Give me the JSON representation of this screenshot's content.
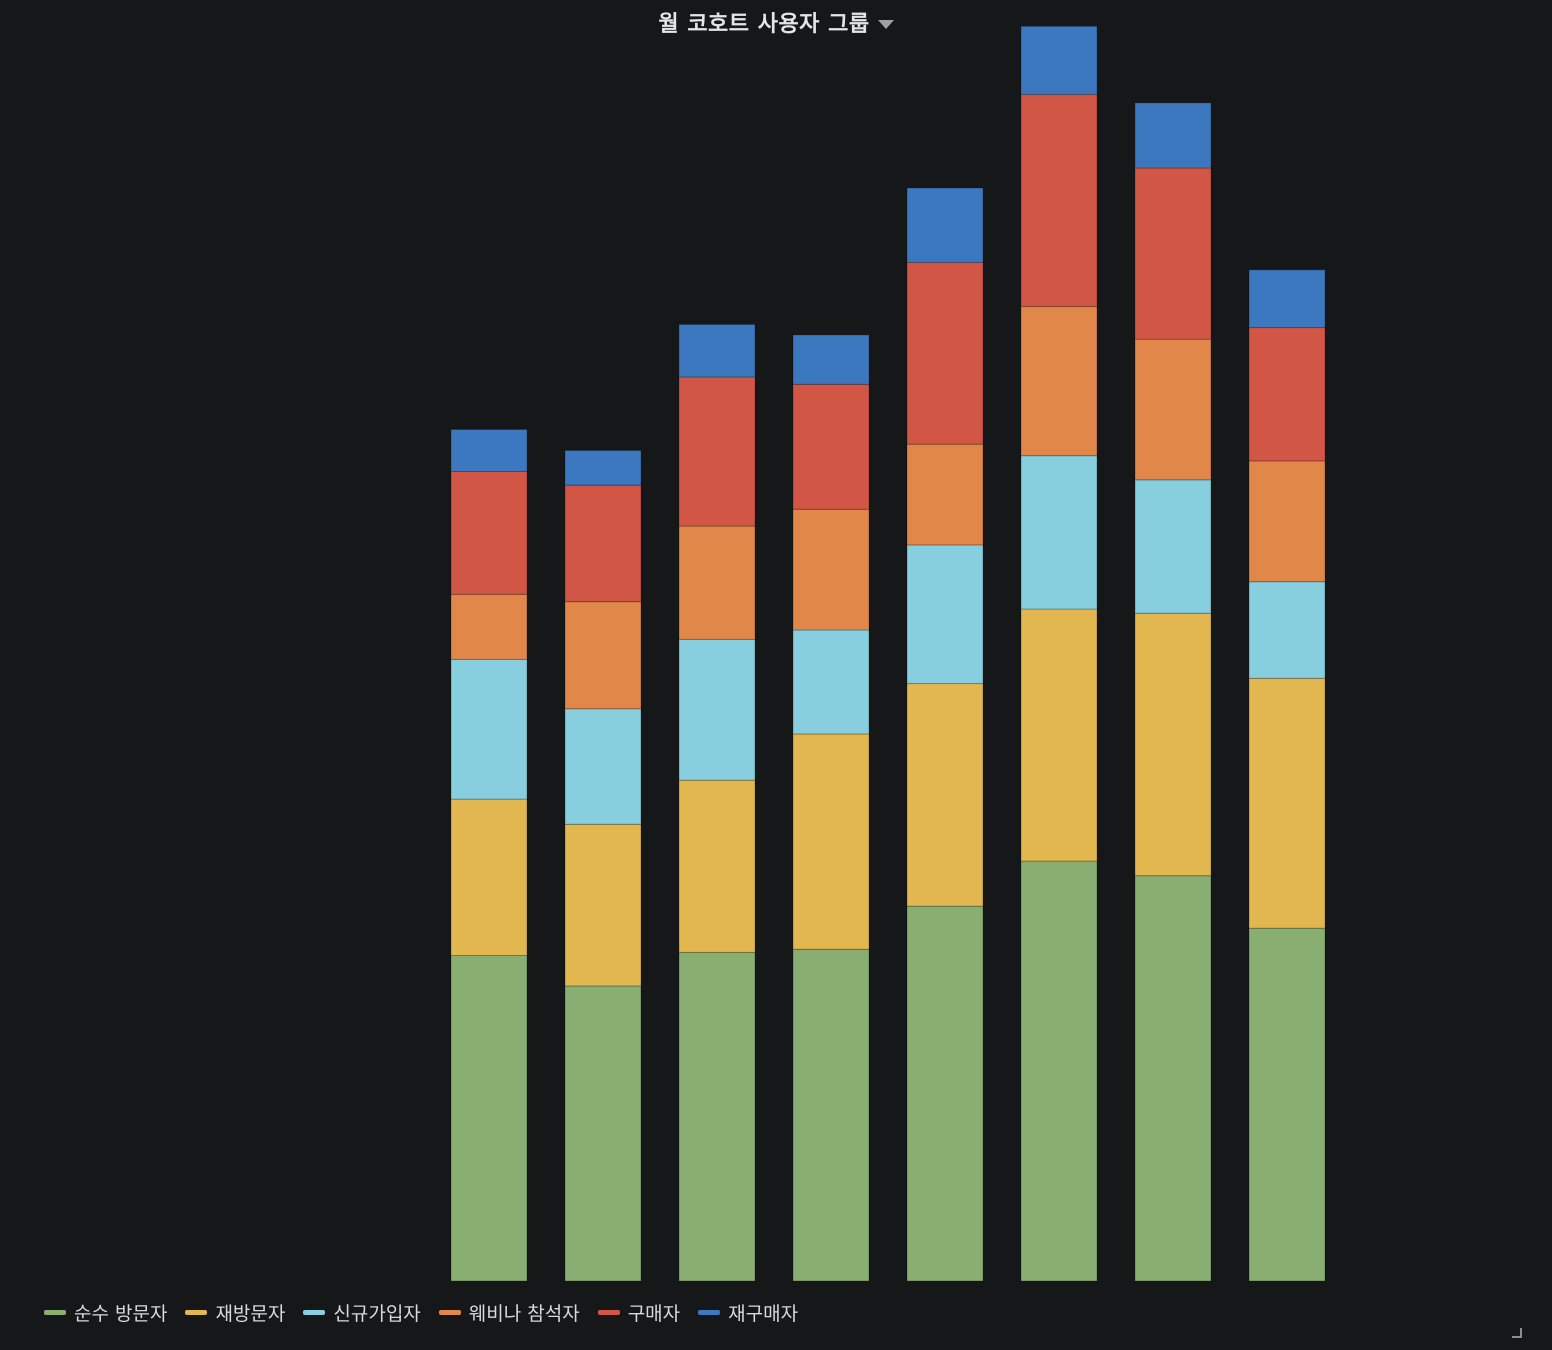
{
  "panel": {
    "title": "월 코호트 사용자 그룹"
  },
  "legend": [
    {
      "label": "순수 방문자",
      "color": "#89ae71"
    },
    {
      "label": "재방문자",
      "color": "#e2b74f"
    },
    {
      "label": "신규가입자",
      "color": "#87cede"
    },
    {
      "label": "웨비나 참석자",
      "color": "#e1874a"
    },
    {
      "label": "구매자",
      "color": "#d25646"
    },
    {
      "label": "재구매자",
      "color": "#3b78bf"
    }
  ],
  "chart_data": {
    "type": "bar",
    "stacked": true,
    "grid": false,
    "legend_position": "bottom-left",
    "title": "월 코호트 사용자 그룹",
    "xlabel": "",
    "ylabel": "",
    "ylim": [
      0,
      1220
    ],
    "categories": [
      "",
      "",
      "",
      "",
      "",
      "",
      "",
      "",
      "",
      "",
      "",
      ""
    ],
    "series": [
      {
        "name": "순수 방문자",
        "color": "#89ae71",
        "values": [
          0,
          0,
          0,
          0,
          310,
          281,
          313,
          316,
          357,
          400,
          386,
          336
        ]
      },
      {
        "name": "재방문자",
        "color": "#e2b74f",
        "values": [
          0,
          0,
          0,
          0,
          149,
          154,
          164,
          205,
          212,
          240,
          250,
          238
        ]
      },
      {
        "name": "신규가입자",
        "color": "#87cede",
        "values": [
          0,
          0,
          0,
          0,
          133,
          110,
          134,
          99,
          132,
          146,
          127,
          92
        ]
      },
      {
        "name": "웨비나 참석자",
        "color": "#e1874a",
        "values": [
          0,
          0,
          0,
          0,
          62,
          102,
          108,
          115,
          96,
          142,
          134,
          115
        ]
      },
      {
        "name": "구매자",
        "color": "#d25646",
        "values": [
          0,
          0,
          0,
          0,
          117,
          111,
          142,
          119,
          173,
          202,
          163,
          127
        ]
      },
      {
        "name": "재구매자",
        "color": "#3b78bf",
        "values": [
          0,
          0,
          0,
          0,
          40,
          33,
          50,
          47,
          71,
          65,
          62,
          55
        ]
      }
    ]
  }
}
